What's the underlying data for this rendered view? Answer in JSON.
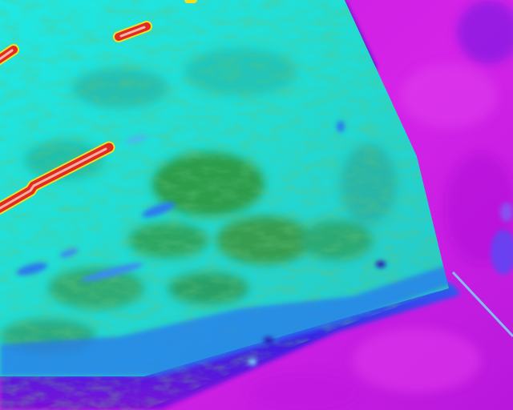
{
  "image": {
    "kind": "thermal-infrared-aerial",
    "palette": {
      "ground_magenta": "#d21ee6",
      "ground_violet": "#a010e0",
      "edge_blue": "#3a18e0",
      "roof_cyan": "#22e6e0",
      "roof_teal": "#1fb89a",
      "roof_green": "#2e8a2a",
      "hot_red": "#e02a24",
      "hot_core": "#ffb0a0",
      "hot_rim": "#f0e020",
      "cool_blue": "#2a7aee",
      "shadow_navy": "#2a10b0"
    },
    "regions": [
      "ground",
      "roof-surface",
      "roof-edge-shadow",
      "hot-streaks",
      "cool-patches"
    ]
  }
}
